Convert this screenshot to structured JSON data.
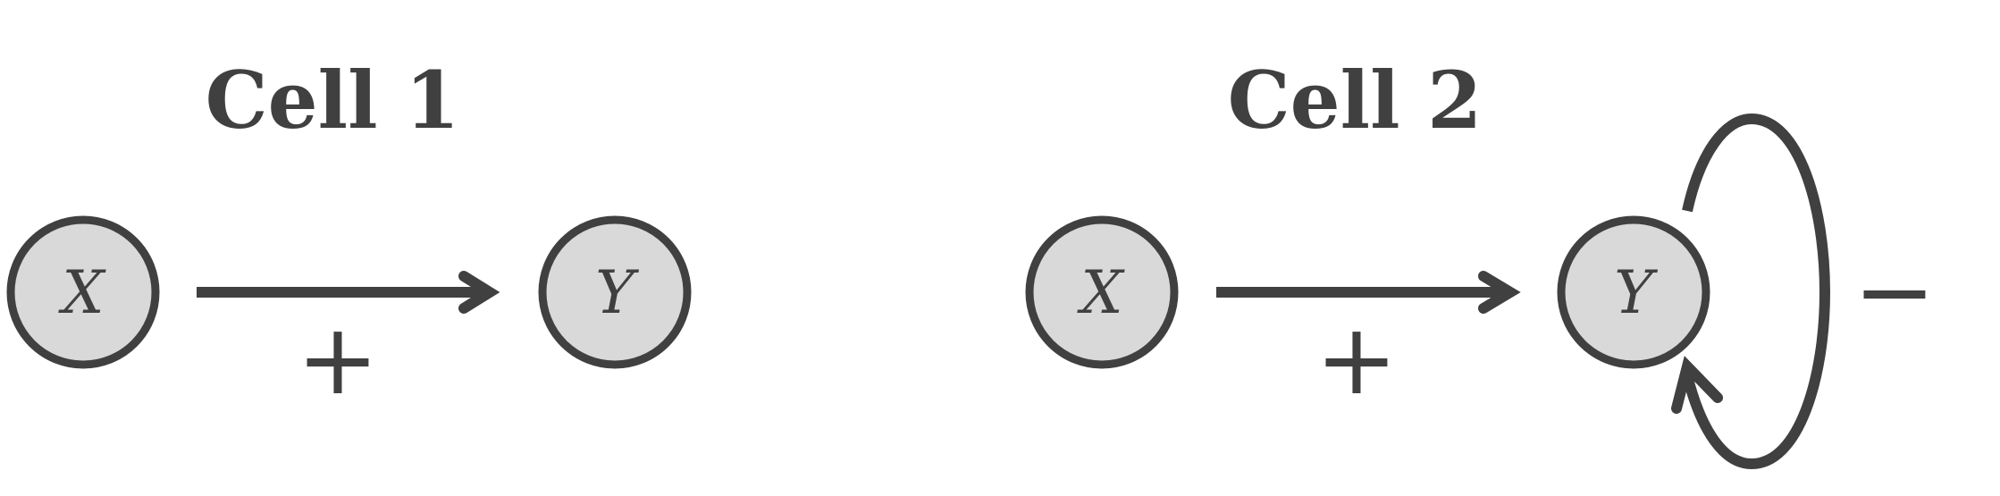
{
  "cells": [
    {
      "title": "Cell 1",
      "nodes": [
        {
          "id": "X",
          "label": "X"
        },
        {
          "id": "Y",
          "label": "Y"
        }
      ],
      "edges": [
        {
          "from": "X",
          "to": "Y",
          "sign": "+"
        }
      ]
    },
    {
      "title": "Cell 2",
      "nodes": [
        {
          "id": "X",
          "label": "X"
        },
        {
          "id": "Y",
          "label": "Y"
        }
      ],
      "edges": [
        {
          "from": "X",
          "to": "Y",
          "sign": "+"
        },
        {
          "from": "Y",
          "to": "Y",
          "sign": "−",
          "type": "self-loop"
        }
      ]
    }
  ],
  "colors": {
    "stroke": "#404040",
    "node_fill": "#d9d9d9"
  }
}
